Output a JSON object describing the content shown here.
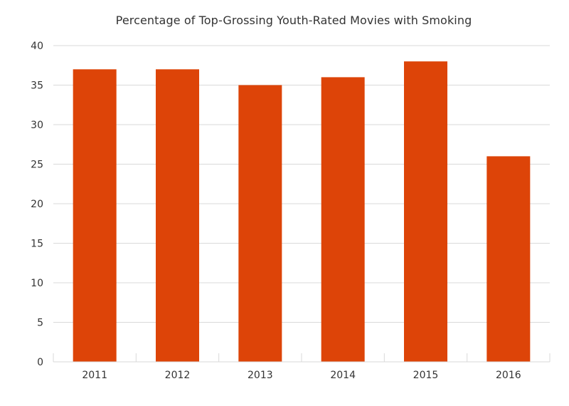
{
  "chart_data": {
    "type": "bar",
    "title": "Percentage of Top-Grossing Youth-Rated Movies with Smoking",
    "categories": [
      "2011",
      "2012",
      "2013",
      "2014",
      "2015",
      "2016"
    ],
    "values": [
      37,
      37,
      35,
      36,
      38,
      26
    ],
    "xlabel": "",
    "ylabel": "",
    "ylim": [
      0,
      40
    ],
    "yticks": [
      "0",
      "5",
      "10",
      "15",
      "20",
      "25",
      "30",
      "35",
      "40"
    ],
    "grid": true,
    "legend": "none",
    "bar_color": "#DD4408",
    "grid_color": "#D9D9D9"
  }
}
